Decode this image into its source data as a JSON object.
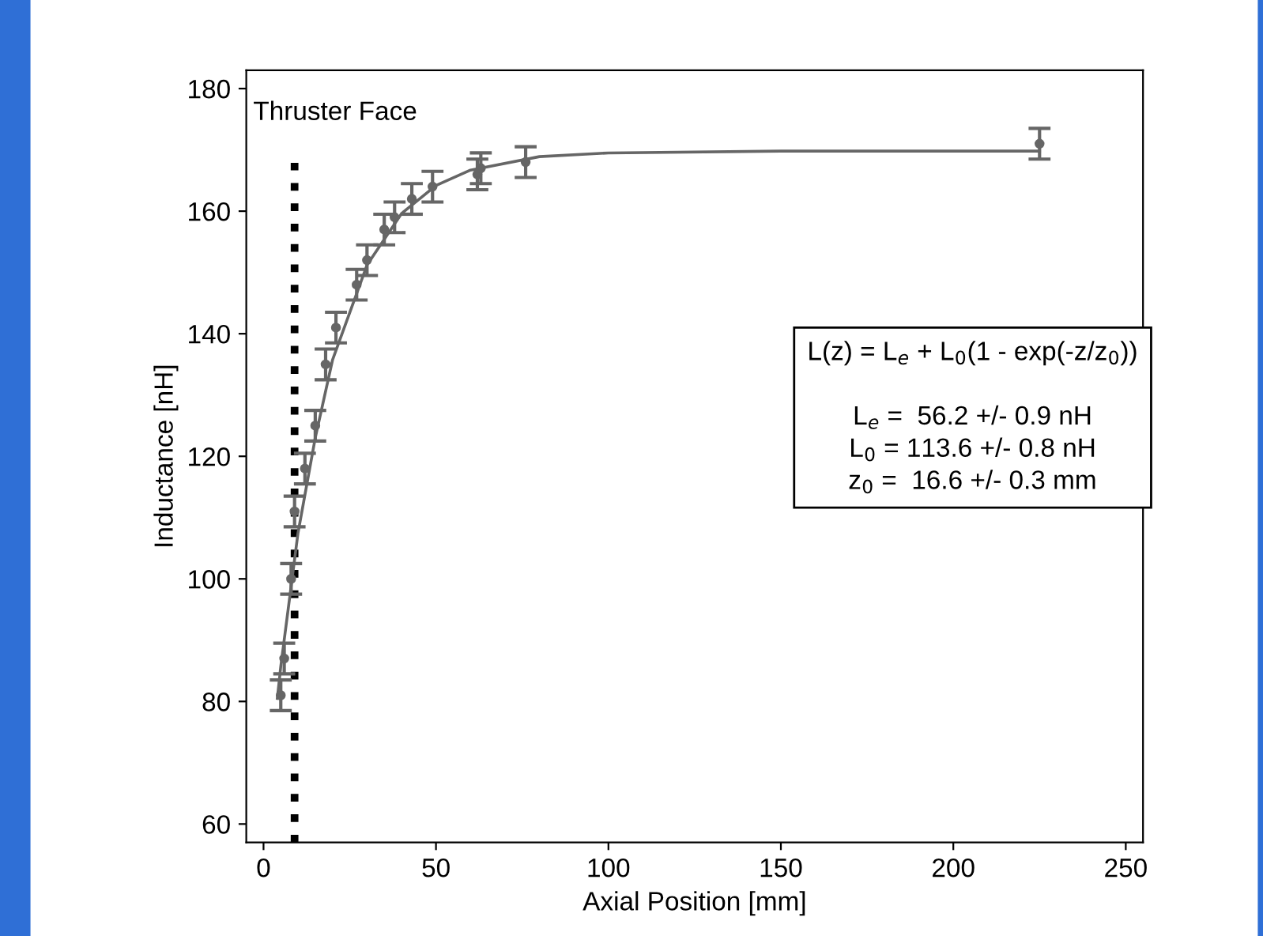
{
  "chart_data": {
    "type": "scatter",
    "xlabel": "Axial Position [mm]",
    "ylabel": "Inductance [nH]",
    "xlim": [
      -5,
      255
    ],
    "ylim": [
      57,
      183
    ],
    "xticks": [
      0,
      50,
      100,
      150,
      200,
      250
    ],
    "yticks": [
      60,
      80,
      100,
      120,
      140,
      160,
      180
    ],
    "grid": false,
    "series": [
      {
        "color": "#666666",
        "marker": "circle",
        "x": [
          5,
          6,
          8,
          9,
          12,
          15,
          18,
          21,
          27,
          30,
          35,
          38,
          43,
          49,
          62,
          63,
          76,
          225
        ],
        "values": [
          81,
          87,
          100,
          111,
          118,
          125,
          135,
          141,
          148,
          152,
          157,
          159,
          162,
          164,
          166,
          167,
          168,
          171
        ],
        "errors": [
          2.5,
          2.5,
          2.5,
          2.5,
          2.5,
          2.5,
          2.5,
          2.5,
          2.5,
          2.5,
          2.5,
          2.5,
          2.5,
          2.5,
          2.5,
          2.5,
          2.5,
          2.5
        ]
      },
      {
        "type": "line",
        "color": "#666666",
        "marker": "none",
        "line_style": "solid",
        "x": [
          4,
          5,
          10,
          15,
          20,
          30,
          40,
          50,
          60,
          80,
          100,
          150,
          225
        ],
        "values": [
          80.5,
          85.7,
          107.5,
          123,
          135.7,
          151.2,
          159.6,
          164.2,
          166.7,
          168.9,
          169.5,
          169.8,
          169.8
        ]
      }
    ],
    "ref_lines": [
      {
        "axis": "x",
        "value": 9,
        "label": "Thruster Face",
        "color": "#000000",
        "line_style": "dotted"
      }
    ],
    "annotations": [
      "L(z) = L$_{e}$ + L$_{0}$(1 - exp(-z/z$_{0}$))\n\nL$_{e}$ =  56.2 +/- 0.9 nH\nL$_{0}$ = 113.6 +/- 0.8 nH\nz$_{0}$ =  16.6 +/- 0.3 mm"
    ]
  }
}
